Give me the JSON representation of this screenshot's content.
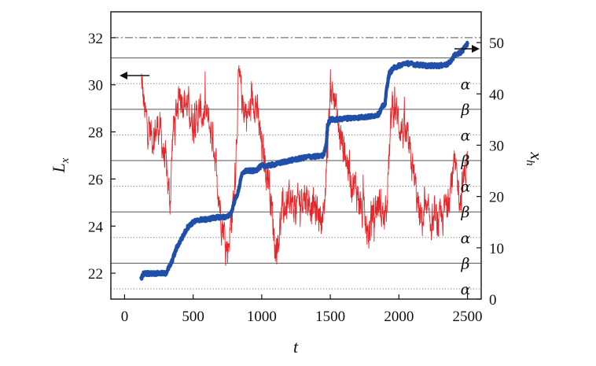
{
  "chart_data": {
    "type": "line",
    "xlabel": "t",
    "ylabel_left": "L",
    "ylabel_left_sub": "x",
    "ylabel_right": "x",
    "ylabel_right_sub": "h",
    "xlim": [
      -100,
      2600
    ],
    "ylim_left": [
      20.9,
      33.1
    ],
    "ylim_right": [
      0,
      56
    ],
    "x_ticks": [
      0,
      500,
      1000,
      1500,
      2000,
      2500
    ],
    "y_left_ticks": [
      22,
      24,
      26,
      28,
      30,
      32
    ],
    "y_right_ticks": [
      0,
      10,
      20,
      30,
      40,
      50
    ],
    "colors": {
      "lx": "#e8262a",
      "xh": "#1f4fa8",
      "axes": "#111111",
      "solid_ref": "#555555",
      "dotted_ref": "#777777"
    },
    "solid_reference_lines_xh": [
      7,
      17,
      27,
      37,
      47
    ],
    "dotted_reference_lines_xh": [
      2,
      12,
      22,
      32,
      42
    ],
    "dashdot_reference_line_left": 32,
    "phase_labels": [
      {
        "text": "α",
        "xh": 42
      },
      {
        "text": "β",
        "xh": 37
      },
      {
        "text": "α",
        "xh": 32
      },
      {
        "text": "β",
        "xh": 27
      },
      {
        "text": "α",
        "xh": 22
      },
      {
        "text": "β",
        "xh": 17
      },
      {
        "text": "α",
        "xh": 12
      },
      {
        "text": "β",
        "xh": 7
      },
      {
        "text": "α",
        "xh": 2
      }
    ],
    "series": [
      {
        "axis": "left",
        "noise": 0.55,
        "x": [
          120,
          150,
          200,
          250,
          300,
          330,
          350,
          400,
          450,
          500,
          550,
          600,
          650,
          700,
          750,
          800,
          830,
          860,
          900,
          950,
          1000,
          1050,
          1100,
          1150,
          1200,
          1250,
          1300,
          1350,
          1400,
          1450,
          1500,
          1530,
          1560,
          1600,
          1650,
          1700,
          1750,
          1780,
          1800,
          1850,
          1900,
          1950,
          2000,
          2050,
          2100,
          2150,
          2200,
          2250,
          2300,
          2350,
          2400,
          2450,
          2500
        ],
        "y": [
          30.2,
          28.6,
          27.8,
          28.3,
          26.5,
          25.0,
          28.0,
          29.7,
          29.2,
          28.4,
          28.8,
          28.6,
          27.5,
          24.5,
          23.0,
          25.5,
          30.3,
          29.2,
          28.7,
          29.5,
          27.2,
          26.1,
          22.9,
          24.7,
          25.0,
          24.8,
          25.4,
          25.0,
          24.6,
          24.3,
          30.0,
          29.4,
          28.0,
          27.3,
          26.0,
          25.4,
          24.0,
          23.6,
          24.5,
          25.0,
          24.2,
          29.3,
          28.4,
          27.7,
          26.4,
          24.3,
          24.4,
          24.2,
          24.1,
          25.0,
          26.5,
          25.2,
          27.0
        ]
      },
      {
        "axis": "right",
        "noise": 0.4,
        "x": [
          120,
          140,
          300,
          340,
          380,
          420,
          460,
          500,
          550,
          600,
          640,
          700,
          750,
          780,
          800,
          830,
          850,
          880,
          900,
          950,
          1000,
          1050,
          1100,
          1200,
          1300,
          1350,
          1400,
          1450,
          1470,
          1480,
          1500,
          1560,
          1600,
          1700,
          1750,
          1800,
          1850,
          1880,
          1900,
          1910,
          1930,
          1960,
          2000,
          2050,
          2100,
          2200,
          2300,
          2360,
          2390,
          2400,
          2450,
          2500
        ],
        "y": [
          4,
          5,
          5,
          7,
          10,
          12,
          14,
          15,
          15.5,
          15.5,
          15.8,
          16,
          16,
          17,
          19,
          21,
          24,
          25,
          25,
          25,
          26,
          26,
          26.3,
          27,
          27.5,
          27.8,
          27.8,
          28,
          30,
          34,
          35,
          35,
          35.2,
          35.4,
          35.5,
          35.6,
          36,
          37.5,
          38,
          41,
          44,
          45,
          45.5,
          46,
          45.8,
          45.5,
          45.5,
          45.8,
          46.8,
          47.5,
          48,
          49.8
        ]
      }
    ]
  }
}
